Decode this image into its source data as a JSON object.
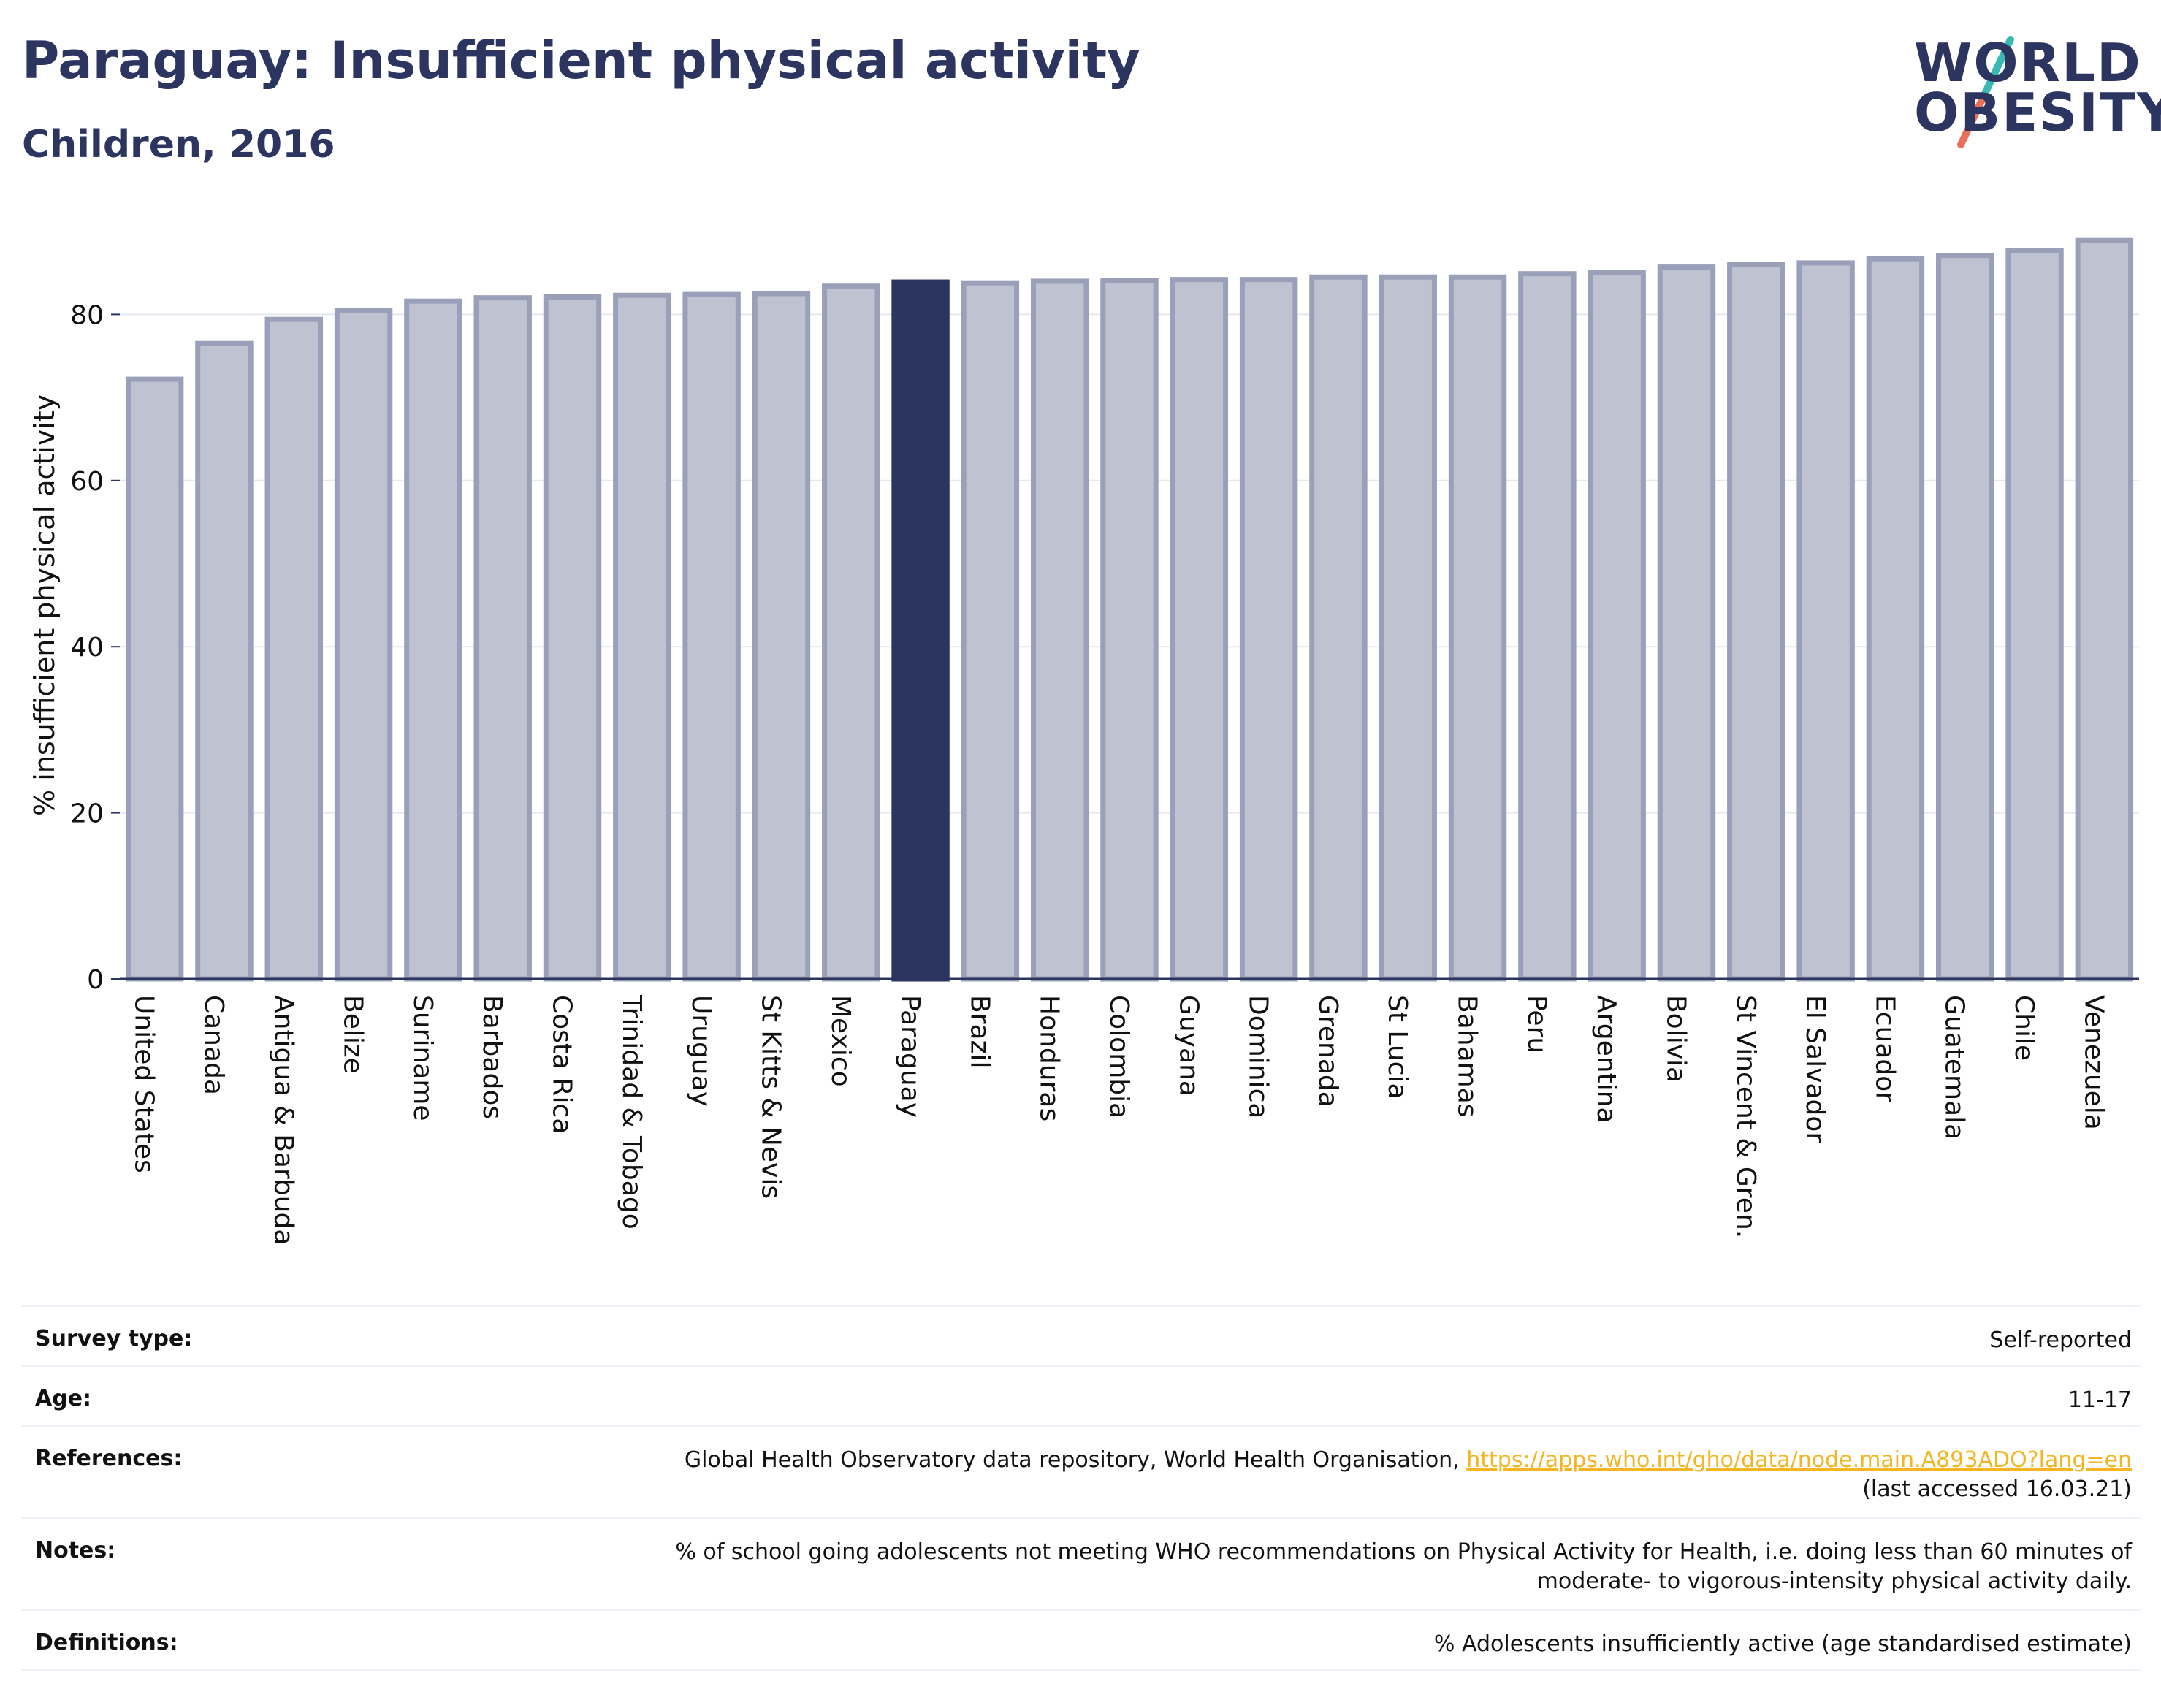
{
  "header": {
    "title": "Paraguay: Insufficient physical activity",
    "subtitle": "Children, 2016"
  },
  "logo": {
    "line1": "WORLD",
    "line2": "OBESITY",
    "colors": {
      "text": "#2b3560",
      "slash_teal": "#3ab8b4",
      "slash_red": "#e8705a"
    }
  },
  "colors": {
    "bar": "#bfc2d1",
    "bar_border": "#9aa0b9",
    "highlight": "#2b3560",
    "axis": "#2b3560",
    "grid": "#e6e8ef",
    "link": "#f2b623"
  },
  "chart_data": {
    "type": "bar",
    "ylabel": "% insufficient physical activity",
    "xlabel": "",
    "ylim": [
      0,
      90
    ],
    "yticks": [
      0,
      20,
      40,
      60,
      80
    ],
    "grid": true,
    "highlight": "Paraguay",
    "categories": [
      "United States",
      "Canada",
      "Antigua & Barbuda",
      "Belize",
      "Suriname",
      "Barbados",
      "Costa Rica",
      "Trinidad & Tobago",
      "Uruguay",
      "St Kitts & Nevis",
      "Mexico",
      "Paraguay",
      "Brazil",
      "Honduras",
      "Colombia",
      "Guyana",
      "Dominica",
      "Grenada",
      "St Lucia",
      "Bahamas",
      "Peru",
      "Argentina",
      "Bolivia",
      "St Vincent & Gren.",
      "El Salvador",
      "Ecuador",
      "Guatemala",
      "Chile",
      "Venezuela"
    ],
    "values": [
      72.2,
      76.5,
      79.4,
      80.5,
      81.6,
      82.0,
      82.1,
      82.3,
      82.4,
      82.5,
      83.4,
      83.9,
      83.8,
      84.0,
      84.1,
      84.2,
      84.2,
      84.5,
      84.5,
      84.5,
      84.9,
      85.0,
      85.7,
      86.0,
      86.2,
      86.7,
      87.1,
      87.7,
      88.9
    ]
  },
  "info": {
    "survey_type": {
      "label": "Survey type:",
      "value": "Self-reported"
    },
    "age": {
      "label": "Age:",
      "value": "11-17"
    },
    "references": {
      "label": "References:",
      "text": "Global Health Observatory data repository, World Health Organisation, ",
      "link": "https://apps.who.int/gho/data/node.main.A893ADO?lang=en",
      "suffix": "(last accessed 16.03.21)"
    },
    "notes": {
      "label": "Notes:",
      "line1": "% of school going adolescents not meeting WHO recommendations on Physical Activity for Health, i.e. doing less than 60 minutes of",
      "line2": "moderate- to vigorous-intensity physical activity daily."
    },
    "definitions": {
      "label": "Definitions:",
      "value": "% Adolescents insufficiently active (age standardised estimate)"
    }
  }
}
